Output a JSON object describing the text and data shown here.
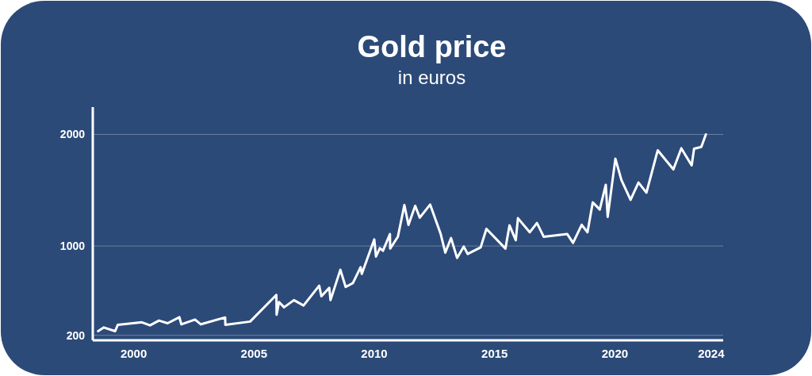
{
  "chart_data": {
    "type": "line",
    "title": "Gold price",
    "subtitle": "in euros",
    "x": [
      1998.52,
      1998.76,
      1999.23,
      1999.34,
      2000.34,
      2000.68,
      2001.05,
      2001.41,
      2001.9,
      2001.98,
      2002.55,
      2002.79,
      2003.8,
      2003.81,
      2004.84,
      2005.93,
      2005.94,
      2006.04,
      2006.25,
      2006.66,
      2007.06,
      2007.71,
      2007.8,
      2008.13,
      2008.18,
      2008.59,
      2008.81,
      2009.11,
      2009.43,
      2009.48,
      2010.0,
      2010.07,
      2010.23,
      2010.36,
      2010.65,
      2010.66,
      2010.98,
      2011.25,
      2011.42,
      2011.7,
      2011.89,
      2012.32,
      2012.76,
      2012.95,
      2013.19,
      2013.44,
      2013.72,
      2013.88,
      2014.42,
      2014.66,
      2015.45,
      2015.62,
      2015.88,
      2015.97,
      2016.46,
      2016.76,
      2017.04,
      2018.02,
      2018.26,
      2018.62,
      2018.86,
      2019.08,
      2019.37,
      2019.62,
      2019.7,
      2020.02,
      2020.27,
      2020.65,
      2020.98,
      2021.31,
      2021.78,
      2022.43,
      2022.76,
      2023.19,
      2023.29,
      2023.59,
      2023.78
    ],
    "series": [
      {
        "color": "#ffffff",
        "values": [
          237,
          270,
          237,
          294,
          316,
          289,
          332,
          308,
          362,
          298,
          341,
          298,
          360,
          294,
          323,
          562,
          384,
          498,
          451,
          515,
          467,
          645,
          550,
          625,
          515,
          787,
          633,
          668,
          810,
          751,
          1059,
          905,
          981,
          957,
          1107,
          977,
          1083,
          1367,
          1190,
          1360,
          1254,
          1372,
          1107,
          941,
          1071,
          893,
          995,
          929,
          988,
          1154,
          977,
          1185,
          1052,
          1249,
          1123,
          1206,
          1083,
          1107,
          1028,
          1190,
          1123,
          1391,
          1327,
          1549,
          1261,
          1782,
          1592,
          1414,
          1569,
          1478,
          1858,
          1687,
          1876,
          1723,
          1872,
          1888,
          2000
        ]
      }
    ],
    "xlim": [
      1998.3,
      2024.5
    ],
    "xticks": [
      2000,
      2005,
      2010,
      2015,
      2020,
      2024
    ],
    "ylim": [
      155,
      2245
    ],
    "yticks": [
      200,
      1000,
      2000
    ],
    "grid": "y",
    "marker": "none",
    "line_style": "solid"
  }
}
